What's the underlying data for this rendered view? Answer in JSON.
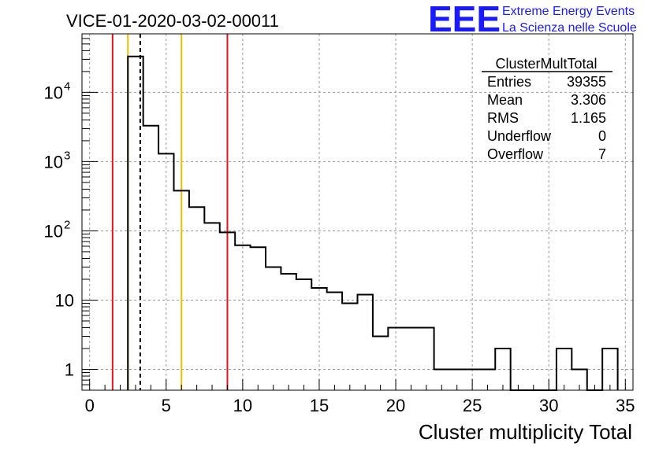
{
  "title": "VICE-01-2020-03-02-00011",
  "logo": {
    "mark": "EEE",
    "line1": "Extreme Energy Events",
    "line2": "La Scienza nelle Scuole"
  },
  "stats": {
    "name": "ClusterMultTotal",
    "rows": [
      {
        "label": "Entries",
        "value": "39355"
      },
      {
        "label": "Mean",
        "value": "3.306"
      },
      {
        "label": "RMS",
        "value": "1.165"
      },
      {
        "label": "Underflow",
        "value": "0"
      },
      {
        "label": "Overflow",
        "value": "7"
      }
    ]
  },
  "chart_data": {
    "type": "histogram",
    "title": "VICE-01-2020-03-02-00011",
    "xlabel": "Cluster multiplicity Total",
    "ylabel": "",
    "xlim": [
      -0.5,
      35.5
    ],
    "ylim": [
      0.5,
      70000
    ],
    "yscale": "log",
    "grid": true,
    "x_ticks": [
      "0",
      "5",
      "10",
      "15",
      "20",
      "25",
      "30",
      "35"
    ],
    "y_ticks": [
      {
        "base": "1",
        "exp": ""
      },
      {
        "base": "10",
        "exp": ""
      },
      {
        "base": "10",
        "exp": "2"
      },
      {
        "base": "10",
        "exp": "3"
      },
      {
        "base": "10",
        "exp": "4"
      }
    ],
    "bin_edges": [
      2.5,
      3.5,
      4.5,
      5.5,
      6.5,
      7.5,
      8.5,
      9.5,
      10.5,
      11.5,
      12.5,
      13.5,
      14.5,
      15.5,
      16.5,
      17.5,
      18.5,
      19.5,
      20.5,
      21.5,
      22.5,
      23.5,
      24.5,
      25.5,
      26.5,
      27.5,
      28.5,
      29.5,
      30.5,
      31.5,
      32.5,
      33.5,
      34.5
    ],
    "counts": [
      33000,
      3300,
      1300,
      380,
      220,
      130,
      95,
      62,
      58,
      30,
      24,
      20,
      15,
      13,
      9,
      12,
      3,
      4,
      4,
      4,
      1,
      1,
      1,
      1,
      2,
      0,
      0,
      0,
      2,
      1,
      0,
      2
    ],
    "vertical_markers": [
      {
        "x": 1.5,
        "color": "#e8141b",
        "style": "solid"
      },
      {
        "x": 2.5,
        "color": "#f0c000",
        "style": "solid"
      },
      {
        "x": 3.306,
        "color": "#000000",
        "style": "dashed"
      },
      {
        "x": 6.0,
        "color": "#f0c000",
        "style": "solid"
      },
      {
        "x": 9.0,
        "color": "#e8141b",
        "style": "solid"
      }
    ]
  }
}
